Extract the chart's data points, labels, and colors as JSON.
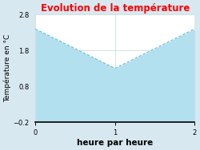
{
  "title": "Evolution de la température",
  "title_color": "#ff0000",
  "xlabel": "heure par heure",
  "ylabel": "Température en °C",
  "x": [
    0,
    1,
    2
  ],
  "y": [
    2.4,
    1.3,
    2.4
  ],
  "ylim": [
    -0.2,
    2.8
  ],
  "xlim": [
    0,
    2
  ],
  "xticks": [
    0,
    1,
    2
  ],
  "yticks": [
    -0.2,
    0.8,
    1.8,
    2.8
  ],
  "line_color": "#5bbdd8",
  "fill_color": "#b3e0ef",
  "background_color": "#d8e8f0",
  "plot_bg_color": "#ffffff",
  "grid_color": "#ccdddd",
  "title_fontsize": 8.5,
  "label_fontsize": 6.5,
  "tick_fontsize": 6,
  "xlabel_fontsize": 7.5
}
